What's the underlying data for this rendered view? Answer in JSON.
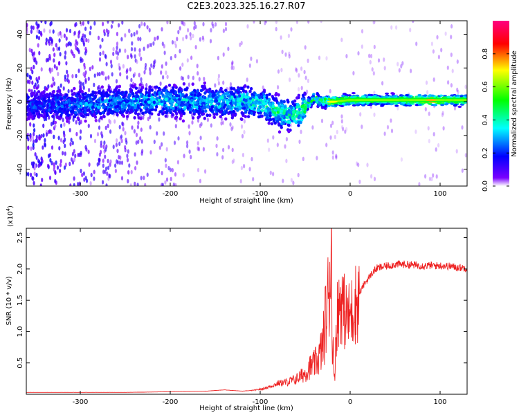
{
  "title": "C2E3.2023.325.16.27.R07",
  "chart_data": [
    {
      "type": "heatmap",
      "xlabel": "Height of straight line (km)",
      "ylabel": "Frequency (Hz)",
      "xlim": [
        -360,
        130
      ],
      "ylim": [
        -50,
        48
      ],
      "xticks": [
        -300,
        -200,
        -100,
        0,
        100
      ],
      "yticks": [
        -40,
        -20,
        0,
        20,
        40
      ],
      "colorbar": {
        "label": "Normalized spectral amplitude",
        "range": [
          0,
          1
        ],
        "ticks": [
          0.0,
          0.2,
          0.4,
          0.6,
          0.8
        ],
        "tick_labels": [
          "0.0",
          "0.2",
          "0.4",
          "0.6",
          "0.8"
        ],
        "colors": [
          "#ffffff",
          "#7a00ff",
          "#0000ff",
          "#00ffff",
          "#00ff00",
          "#ffff00",
          "#ff0000",
          "#ff0080"
        ]
      },
      "ridge": [
        {
          "x": -360,
          "y": -2,
          "amp": 0.22
        },
        {
          "x": -330,
          "y": -2,
          "amp": 0.25
        },
        {
          "x": -300,
          "y": -2,
          "amp": 0.28
        },
        {
          "x": -270,
          "y": -1,
          "amp": 0.3
        },
        {
          "x": -240,
          "y": 0,
          "amp": 0.32
        },
        {
          "x": -210,
          "y": 1,
          "amp": 0.35
        },
        {
          "x": -180,
          "y": 0,
          "amp": 0.35
        },
        {
          "x": -150,
          "y": 0,
          "amp": 0.36
        },
        {
          "x": -120,
          "y": 0,
          "amp": 0.38
        },
        {
          "x": -100,
          "y": -1,
          "amp": 0.4
        },
        {
          "x": -85,
          "y": -5,
          "amp": 0.45
        },
        {
          "x": -70,
          "y": -8,
          "amp": 0.42
        },
        {
          "x": -55,
          "y": -6,
          "amp": 0.45
        },
        {
          "x": -40,
          "y": 2,
          "amp": 0.5
        },
        {
          "x": -30,
          "y": 0,
          "amp": 0.55
        },
        {
          "x": -20,
          "y": 0,
          "amp": 0.7
        },
        {
          "x": 0,
          "y": 1,
          "amp": 0.6
        },
        {
          "x": 30,
          "y": 1,
          "amp": 0.5
        },
        {
          "x": 60,
          "y": 1,
          "amp": 0.6
        },
        {
          "x": 90,
          "y": 1,
          "amp": 0.75
        },
        {
          "x": 110,
          "y": 1,
          "amp": 0.6
        },
        {
          "x": 130,
          "y": 1,
          "amp": 0.5
        }
      ]
    },
    {
      "type": "line",
      "xlabel": "Height of straight line (km)",
      "ylabel": "SNR (10 * v/v)",
      "multiplier_label": "(x10",
      "multiplier_exp": "4",
      "multiplier_close": ")",
      "xlim": [
        -360,
        130
      ],
      "ylim": [
        0,
        2.65
      ],
      "xticks": [
        -300,
        -200,
        -100,
        0,
        100
      ],
      "yticks": [
        0.5,
        1.0,
        1.5,
        2.0,
        2.5
      ],
      "ytick_labels": [
        "0.5",
        "1.0",
        "1.5",
        "2.0",
        "2.5"
      ],
      "series": [
        {
          "color": "#ee2222",
          "x": [
            -360,
            -300,
            -250,
            -200,
            -160,
            -140,
            -120,
            -110,
            -100,
            -90,
            -80,
            -70,
            -60,
            -50,
            -45,
            -40,
            -35,
            -30,
            -28,
            -25,
            -23,
            -21,
            -20,
            -18,
            -15,
            -10,
            -5,
            0,
            5,
            10,
            15,
            20,
            25,
            30,
            40,
            50,
            60,
            70,
            80,
            90,
            100,
            110,
            120,
            130
          ],
          "y": [
            0.03,
            0.03,
            0.03,
            0.04,
            0.05,
            0.07,
            0.05,
            0.06,
            0.08,
            0.12,
            0.18,
            0.2,
            0.25,
            0.35,
            0.45,
            0.5,
            0.6,
            0.85,
            1.2,
            1.5,
            2.0,
            2.55,
            1.4,
            0.2,
            1.3,
            1.6,
            1.3,
            1.3,
            1.5,
            1.6,
            1.75,
            1.85,
            1.95,
            2.02,
            2.05,
            2.08,
            2.08,
            2.07,
            2.06,
            2.06,
            2.06,
            2.05,
            2.03,
            2.02
          ]
        }
      ]
    }
  ]
}
